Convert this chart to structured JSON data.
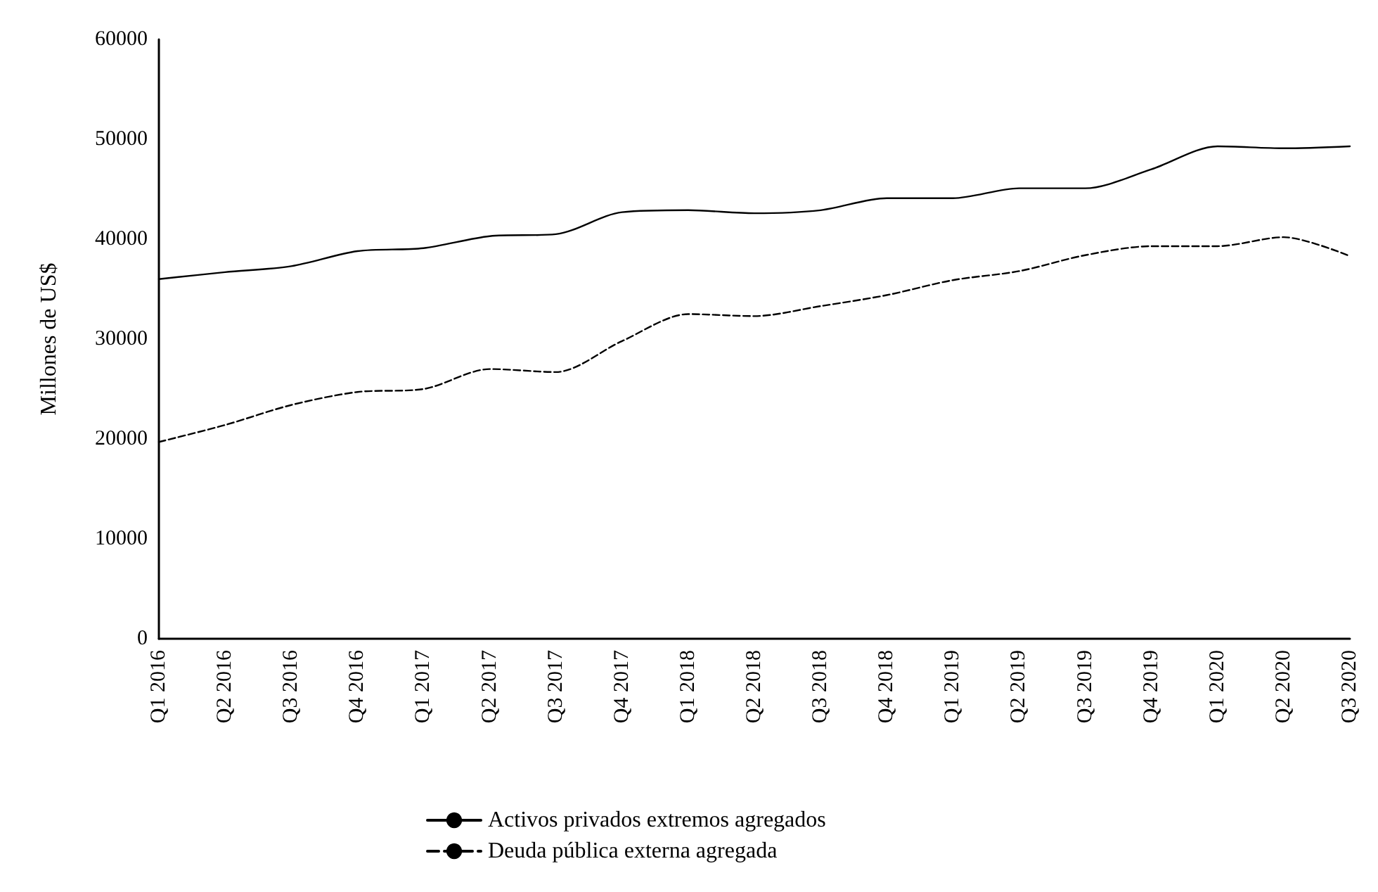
{
  "chart_data": {
    "type": "line",
    "ylabel": "Millones de US$",
    "categories": [
      "Q1 2016",
      "Q2 2016",
      "Q3 2016",
      "Q4 2016",
      "Q1 2017",
      "Q2 2017",
      "Q3 2017",
      "Q4 2017",
      "Q1 2018",
      "Q2 2018",
      "Q3 2018",
      "Q4 2018",
      "Q1 2019",
      "Q2 2019",
      "Q3 2019",
      "Q4 2019",
      "Q1 2020",
      "Q2 2020",
      "Q3 2020"
    ],
    "series": [
      {
        "name": "Activos privados extremos agregados",
        "color": "#000000",
        "line_style": "solid",
        "values": [
          36000,
          36700,
          37300,
          38800,
          39100,
          40300,
          40500,
          42700,
          42900,
          42600,
          42900,
          44100,
          44100,
          45100,
          45100,
          47000,
          49300,
          49100,
          49300
        ]
      },
      {
        "name": "Deuda pública externa agregada",
        "color": "#000000",
        "line_style": "dashed",
        "values": [
          19700,
          21400,
          23400,
          24700,
          25000,
          27000,
          26700,
          29800,
          32500,
          32300,
          33300,
          34400,
          35900,
          36800,
          38400,
          39300,
          39300,
          40200,
          38300
        ]
      }
    ],
    "ylim": [
      0,
      60000
    ],
    "yticks": [
      0,
      10000,
      20000,
      30000,
      40000,
      50000,
      60000
    ],
    "grid": false,
    "legend": "bottom",
    "marker": "none"
  }
}
